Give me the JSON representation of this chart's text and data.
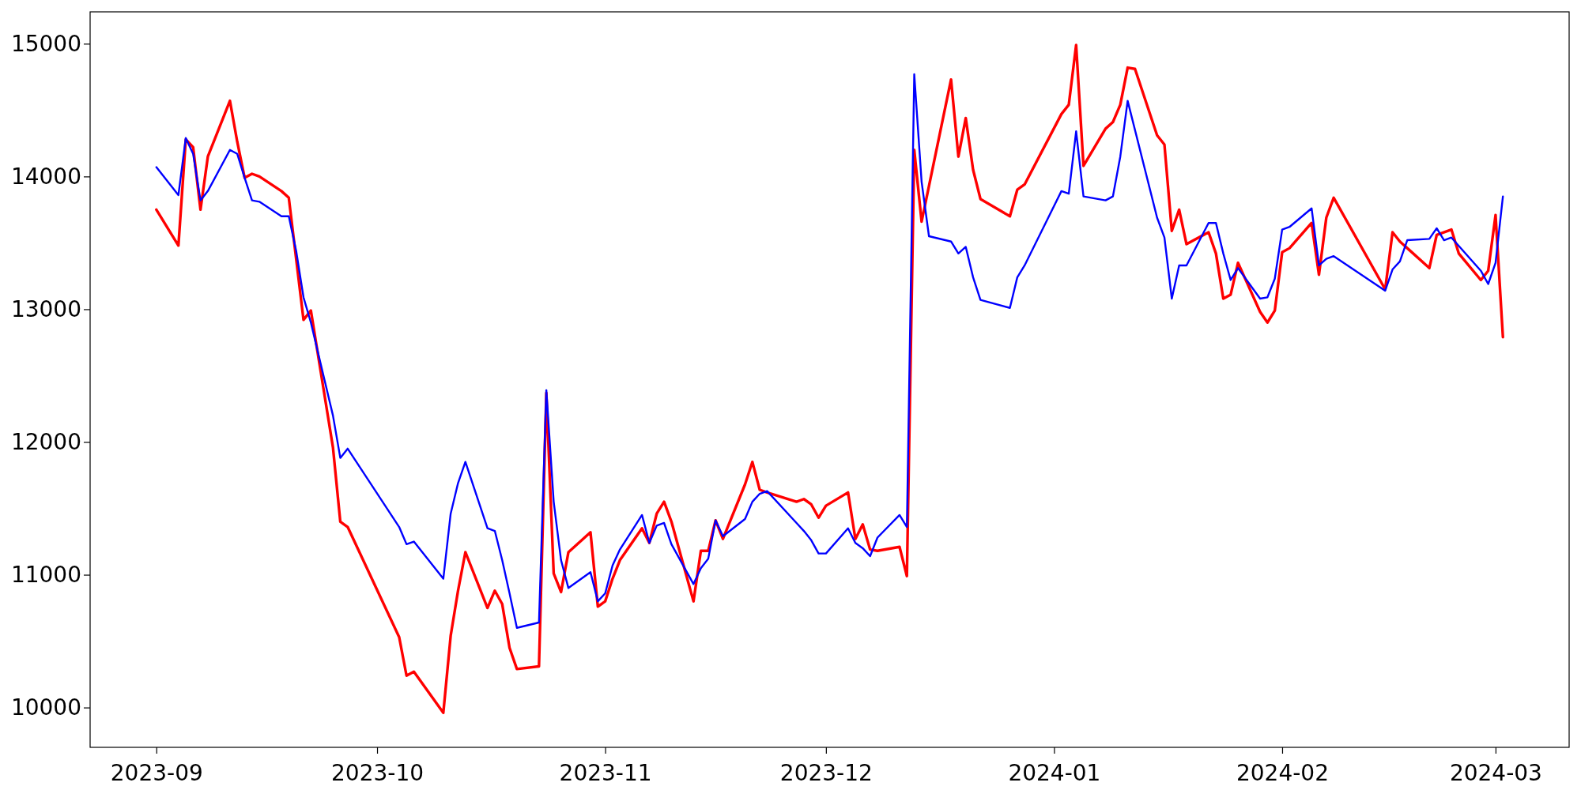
{
  "chart_data": {
    "type": "line",
    "xlim": [
      "2023-08-23",
      "2024-03-11"
    ],
    "ylim": [
      9700,
      15240
    ],
    "xticks": [
      "2023-09",
      "2023-10",
      "2023-11",
      "2023-12",
      "2024-01",
      "2024-02",
      "2024-03"
    ],
    "yticks": [
      10000,
      11000,
      12000,
      13000,
      14000,
      15000
    ],
    "grid": false,
    "line_style": "solid",
    "marker": "none",
    "series": [
      {
        "color": "#ff0000",
        "x": [
          "2023-09-01",
          "2023-09-04",
          "2023-09-05",
          "2023-09-06",
          "2023-09-07",
          "2023-09-08",
          "2023-09-11",
          "2023-09-12",
          "2023-09-13",
          "2023-09-14",
          "2023-09-15",
          "2023-09-18",
          "2023-09-19",
          "2023-09-21",
          "2023-09-22",
          "2023-09-25",
          "2023-09-26",
          "2023-09-27",
          "2023-10-04",
          "2023-10-05",
          "2023-10-06",
          "2023-10-10",
          "2023-10-11",
          "2023-10-12",
          "2023-10-13",
          "2023-10-16",
          "2023-10-17",
          "2023-10-18",
          "2023-10-19",
          "2023-10-20",
          "2023-10-23",
          "2023-10-24",
          "2023-10-25",
          "2023-10-26",
          "2023-10-27",
          "2023-10-30",
          "2023-10-31",
          "2023-11-01",
          "2023-11-02",
          "2023-11-03",
          "2023-11-06",
          "2023-11-07",
          "2023-11-08",
          "2023-11-09",
          "2023-11-10",
          "2023-11-13",
          "2023-11-14",
          "2023-11-15",
          "2023-11-16",
          "2023-11-17",
          "2023-11-20",
          "2023-11-21",
          "2023-11-22",
          "2023-11-23",
          "2023-11-27",
          "2023-11-28",
          "2023-11-29",
          "2023-11-30",
          "2023-12-01",
          "2023-12-04",
          "2023-12-05",
          "2023-12-06",
          "2023-12-07",
          "2023-12-08",
          "2023-12-11",
          "2023-12-12",
          "2023-12-13",
          "2023-12-14",
          "2023-12-18",
          "2023-12-19",
          "2023-12-20",
          "2023-12-21",
          "2023-12-22",
          "2023-12-26",
          "2023-12-27",
          "2023-12-28",
          "2024-01-02",
          "2024-01-03",
          "2024-01-04",
          "2024-01-05",
          "2024-01-08",
          "2024-01-09",
          "2024-01-10",
          "2024-01-11",
          "2024-01-12",
          "2024-01-15",
          "2024-01-16",
          "2024-01-17",
          "2024-01-18",
          "2024-01-19",
          "2024-01-22",
          "2024-01-23",
          "2024-01-24",
          "2024-01-25",
          "2024-01-26",
          "2024-01-29",
          "2024-01-30",
          "2024-01-31",
          "2024-02-01",
          "2024-02-02",
          "2024-02-05",
          "2024-02-06",
          "2024-02-07",
          "2024-02-08",
          "2024-02-15",
          "2024-02-16",
          "2024-02-17",
          "2024-02-21",
          "2024-02-22",
          "2024-02-24",
          "2024-02-25",
          "2024-02-28",
          "2024-02-29",
          "2024-03-01",
          "2024-03-02"
        ],
        "values": [
          13750,
          13480,
          14280,
          14220,
          13750,
          14150,
          14570,
          14260,
          13990,
          14020,
          14000,
          13890,
          13840,
          12920,
          12990,
          11960,
          11400,
          11360,
          10530,
          10240,
          10270,
          9960,
          10540,
          10880,
          11170,
          10750,
          10880,
          10780,
          10450,
          10290,
          10310,
          12370,
          11010,
          10870,
          11170,
          11320,
          10760,
          10800,
          10970,
          11110,
          11350,
          11240,
          11460,
          11550,
          11400,
          10800,
          11180,
          11180,
          11410,
          11270,
          11680,
          11850,
          11640,
          11620,
          11550,
          11570,
          11530,
          11430,
          11520,
          11620,
          11270,
          11380,
          11190,
          11180,
          11210,
          10990,
          14200,
          13660,
          14730,
          14150,
          14440,
          14050,
          13830,
          13700,
          13900,
          13940,
          14470,
          14540,
          14990,
          14080,
          14360,
          14410,
          14540,
          14820,
          14810,
          14310,
          14240,
          13590,
          13750,
          13490,
          13580,
          13420,
          13080,
          13110,
          13350,
          12980,
          12900,
          12990,
          13430,
          13460,
          13650,
          13260,
          13690,
          13840,
          13150,
          13580,
          13510,
          13310,
          13560,
          13600,
          13420,
          13220,
          13290,
          13710,
          12790
        ]
      },
      {
        "color": "#0000ff",
        "x": [
          "2023-09-01",
          "2023-09-04",
          "2023-09-05",
          "2023-09-06",
          "2023-09-07",
          "2023-09-08",
          "2023-09-11",
          "2023-09-12",
          "2023-09-13",
          "2023-09-14",
          "2023-09-15",
          "2023-09-18",
          "2023-09-19",
          "2023-09-20",
          "2023-09-21",
          "2023-09-22",
          "2023-09-25",
          "2023-09-26",
          "2023-09-27",
          "2023-10-04",
          "2023-10-05",
          "2023-10-06",
          "2023-10-10",
          "2023-10-11",
          "2023-10-12",
          "2023-10-13",
          "2023-10-16",
          "2023-10-17",
          "2023-10-18",
          "2023-10-19",
          "2023-10-20",
          "2023-10-23",
          "2023-10-24",
          "2023-10-25",
          "2023-10-26",
          "2023-10-27",
          "2023-10-30",
          "2023-10-31",
          "2023-11-01",
          "2023-11-02",
          "2023-11-03",
          "2023-11-06",
          "2023-11-07",
          "2023-11-08",
          "2023-11-09",
          "2023-11-10",
          "2023-11-13",
          "2023-11-14",
          "2023-11-15",
          "2023-11-16",
          "2023-11-17",
          "2023-11-20",
          "2023-11-21",
          "2023-11-22",
          "2023-11-23",
          "2023-11-27",
          "2023-11-28",
          "2023-11-29",
          "2023-11-30",
          "2023-12-01",
          "2023-12-04",
          "2023-12-05",
          "2023-12-06",
          "2023-12-07",
          "2023-12-08",
          "2023-12-11",
          "2023-12-12",
          "2023-12-13",
          "2023-12-14",
          "2023-12-15",
          "2023-12-18",
          "2023-12-19",
          "2023-12-20",
          "2023-12-21",
          "2023-12-22",
          "2023-12-26",
          "2023-12-27",
          "2023-12-28",
          "2024-01-02",
          "2024-01-03",
          "2024-01-04",
          "2024-01-05",
          "2024-01-08",
          "2024-01-09",
          "2024-01-10",
          "2024-01-11",
          "2024-01-15",
          "2024-01-16",
          "2024-01-17",
          "2024-01-18",
          "2024-01-19",
          "2024-01-22",
          "2024-01-23",
          "2024-01-24",
          "2024-01-25",
          "2024-01-26",
          "2024-01-29",
          "2024-01-30",
          "2024-01-31",
          "2024-02-01",
          "2024-02-02",
          "2024-02-05",
          "2024-02-06",
          "2024-02-07",
          "2024-02-08",
          "2024-02-15",
          "2024-02-16",
          "2024-02-17",
          "2024-02-18",
          "2024-02-21",
          "2024-02-22",
          "2024-02-23",
          "2024-02-24",
          "2024-02-28",
          "2024-02-29",
          "2024-03-01",
          "2024-03-02"
        ],
        "values": [
          14070,
          13860,
          14290,
          14170,
          13820,
          13890,
          14200,
          14170,
          13990,
          13820,
          13810,
          13700,
          13700,
          13440,
          13090,
          12900,
          12200,
          11880,
          11950,
          11360,
          11230,
          11250,
          10970,
          11460,
          11690,
          11850,
          11350,
          11330,
          11110,
          10860,
          10600,
          10640,
          12390,
          11550,
          11110,
          10900,
          11020,
          10800,
          10860,
          11070,
          11190,
          11450,
          11240,
          11370,
          11390,
          11230,
          10930,
          11050,
          11120,
          11410,
          11290,
          11420,
          11550,
          11610,
          11630,
          11390,
          11330,
          11260,
          11160,
          11160,
          11350,
          11240,
          11200,
          11140,
          11280,
          11450,
          11360,
          14770,
          13960,
          13550,
          13510,
          13420,
          13470,
          13240,
          13070,
          13010,
          13240,
          13330,
          13890,
          13870,
          14340,
          13850,
          13820,
          13850,
          14150,
          14570,
          13690,
          13540,
          13080,
          13330,
          13330,
          13650,
          13650,
          13420,
          13220,
          13310,
          13080,
          13090,
          13230,
          13600,
          13620,
          13760,
          13330,
          13380,
          13400,
          13140,
          13300,
          13360,
          13520,
          13530,
          13610,
          13520,
          13540,
          13290,
          13190,
          13350,
          13850
        ]
      }
    ]
  }
}
